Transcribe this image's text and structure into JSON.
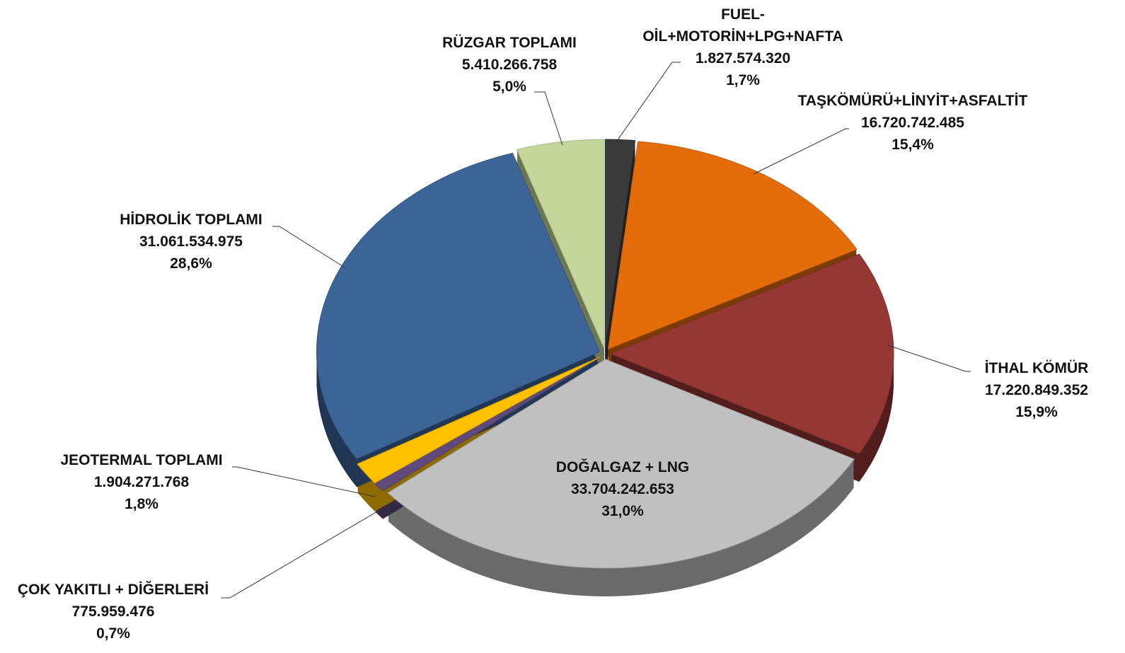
{
  "chart_data": {
    "type": "pie",
    "categories": [
      "FUEL-OİL+MOTORİN+LPG+NAFTA",
      "TAŞKÖMÜRÜ+LİNYİT+ASFALTİT",
      "İTHAL KÖMÜR",
      "DOĞALGAZ + LNG",
      "ÇOK YAKITLI + DİĞERLERİ",
      "JEOTERMAL TOPLAMI",
      "HİDROLİK TOPLAMI",
      "RÜZGAR TOPLAMI"
    ],
    "values": [
      1827574320,
      16720742485,
      17220849352,
      33704242653,
      775959476,
      1904271768,
      31061534975,
      5410266758
    ],
    "value_labels": [
      "1.827.574.320",
      "16.720.742.485",
      "17.220.849.352",
      "33.704.242.653",
      "775.959.476",
      "1.904.271.768",
      "31.061.534.975",
      "5.410.266.758"
    ],
    "percents": [
      1.7,
      15.4,
      15.9,
      31.0,
      0.7,
      1.8,
      28.6,
      5.0
    ],
    "percent_labels": [
      "1,7%",
      "15,4%",
      "15,9%",
      "31,0%",
      "0,7%",
      "1,8%",
      "28,6%",
      "5,0%"
    ],
    "colors": [
      "#3a3a3a",
      "#e46c0a",
      "#953735",
      "#c0c0c0",
      "#604a7b",
      "#ffc000",
      "#3c6496",
      "#c4d79b"
    ]
  }
}
